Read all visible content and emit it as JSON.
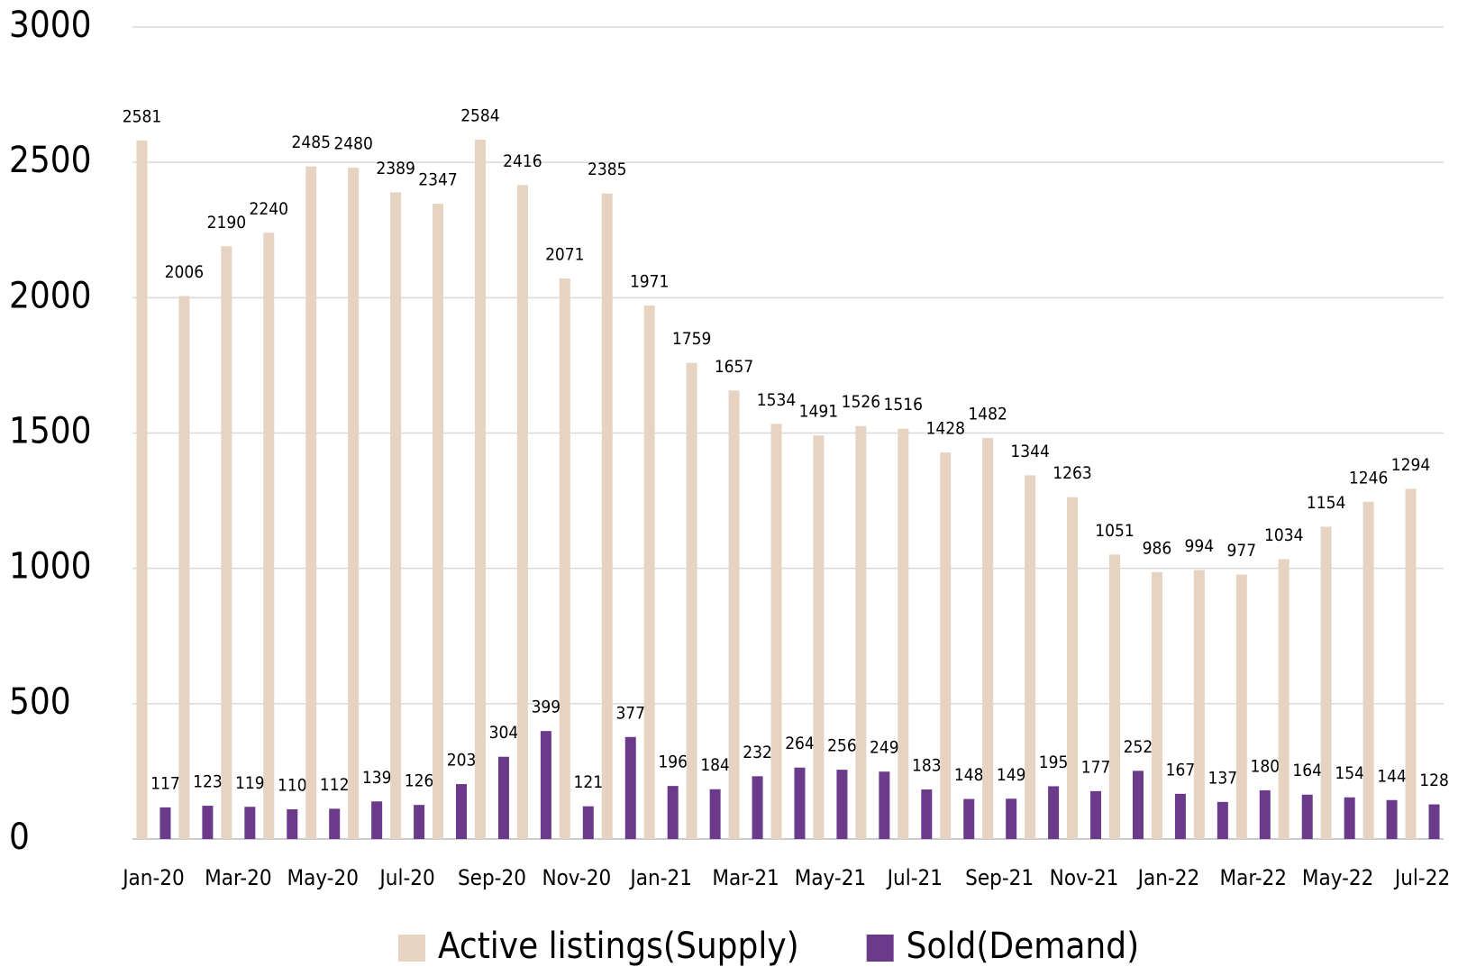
{
  "chart_data": {
    "type": "bar",
    "categories": [
      "Jan-20",
      null,
      "Mar-20",
      null,
      "May-20",
      null,
      "Jul-20",
      null,
      "Sep-20",
      null,
      "Nov-20",
      null,
      "Jan-21",
      null,
      "Mar-21",
      null,
      "May-21",
      null,
      "Jul-21",
      null,
      "Sep-21",
      null,
      "Nov-21",
      null,
      "Jan-22",
      null,
      "Mar-22",
      null,
      "May-22",
      null,
      "Jul-22"
    ],
    "series": [
      {
        "name": "Active listings(Supply)",
        "color": "#e6d3c1",
        "values": [
          2581,
          2006,
          2190,
          2240,
          2485,
          2480,
          2389,
          2347,
          2584,
          2416,
          2071,
          2385,
          1971,
          1759,
          1657,
          1534,
          1491,
          1526,
          1516,
          1428,
          1482,
          1344,
          1263,
          1051,
          986,
          994,
          977,
          1034,
          1154,
          1246,
          1294
        ]
      },
      {
        "name": "Sold(Demand)",
        "color": "#6b3a8a",
        "values": [
          117,
          123,
          119,
          110,
          112,
          139,
          126,
          203,
          304,
          399,
          121,
          377,
          196,
          184,
          232,
          264,
          256,
          249,
          183,
          148,
          149,
          195,
          177,
          252,
          167,
          137,
          180,
          164,
          154,
          144,
          128
        ]
      }
    ],
    "ylim": [
      0,
      3000
    ],
    "yticks": [
      0,
      500,
      1000,
      1500,
      2000,
      2500,
      3000
    ],
    "grid": true,
    "legend": "bottom"
  }
}
